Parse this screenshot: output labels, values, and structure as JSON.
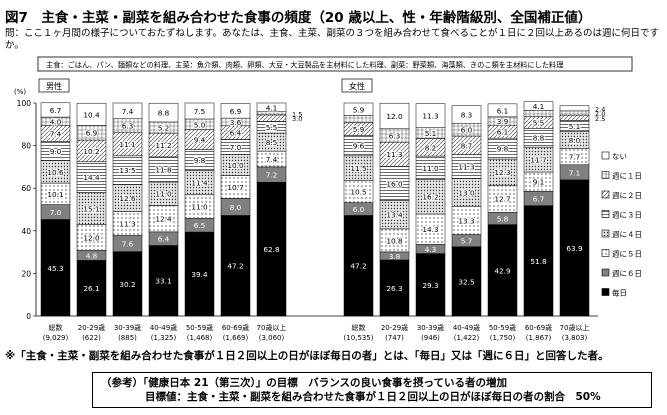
{
  "title": "図7　主食・主菜・副菜を組み合わせた食事の頻度（20 歳以上、性・年齢階級別、全国補正値）",
  "question": "問：ここ１ヶ月間の様子についておたずねします。あなたは、主食、主菜、副菜の３つを組み合わせて食べることが１日に２回以上あるのは週に何日ですか。",
  "definition_box": "主食：ごはん、パン、麺類などの料理、主菜：魚介類、肉類、卵類、大豆・大豆製品を主材料にした料理、副菜：野菜類、海藻類、きのこ類を主材料にした料理",
  "note": "※「主食・主菜・副菜を組み合わせた食事が１日２回以上の日がほぼ毎日の者」とは、「毎日」又は「週に６日」と回答した者。",
  "reference": {
    "line1": "（参考）「健康日本 21（第三次）」の目標　バランスの良い食事を摂っている者の増加",
    "line2": "目標値：主食・主菜・副菜を組み合わせた食事が１日２回以上の日がほぼ毎日の者の割合　50%"
  },
  "chart_data": {
    "type": "bar",
    "stacked": true,
    "ylabel": "(%)",
    "ylim": [
      0,
      100
    ],
    "yticks": [
      0,
      20,
      40,
      60,
      80,
      100
    ],
    "legend_position": "right",
    "groups": [
      {
        "name": "男性",
        "categories": [
          {
            "label": "総数",
            "n": "(9,029)",
            "values": [
              45.3,
              7.0,
              10.1,
              10.6,
              9.0,
              7.4,
              4.0,
              6.7
            ]
          },
          {
            "label": "20-29歳",
            "n": "(622)",
            "values": [
              26.1,
              4.8,
              12.0,
              15.1,
              14.4,
              10.2,
              6.9,
              10.4
            ]
          },
          {
            "label": "30-39歳",
            "n": "(885)",
            "values": [
              30.2,
              7.6,
              11.3,
              12.6,
              13.5,
              11.1,
              6.3,
              7.4
            ]
          },
          {
            "label": "40-49歳",
            "n": "(1,325)",
            "values": [
              33.1,
              6.4,
              12.4,
              11.0,
              11.8,
              11.2,
              5.2,
              8.8
            ]
          },
          {
            "label": "50-59歳",
            "n": "(1,468)",
            "values": [
              39.4,
              6.5,
              11.0,
              11.4,
              9.8,
              9.4,
              5.0,
              7.5
            ]
          },
          {
            "label": "60-69歳",
            "n": "(1,669)",
            "values": [
              47.2,
              8.0,
              10.7,
              10.0,
              7.0,
              6.4,
              3.6,
              6.9
            ]
          },
          {
            "label": "70歳以上",
            "n": "(3,060)",
            "values": [
              62.8,
              7.2,
              7.4,
              8.5,
              5.5,
              3.0,
              1.5,
              4.1
            ]
          }
        ]
      },
      {
        "name": "女性",
        "categories": [
          {
            "label": "総数",
            "n": "(10,535)",
            "values": [
              47.2,
              6.0,
              10.5,
              11.5,
              9.6,
              5.9,
              3.4,
              5.9
            ]
          },
          {
            "label": "20-29歳",
            "n": "(747)",
            "values": [
              26.3,
              3.8,
              10.8,
              13.4,
              16.0,
              11.3,
              6.3,
              12.0
            ]
          },
          {
            "label": "30-39歳",
            "n": "(946)",
            "values": [
              29.3,
              4.3,
              14.3,
              16.2,
              11.0,
              8.2,
              5.1,
              11.3
            ]
          },
          {
            "label": "40-49歳",
            "n": "(1,422)",
            "values": [
              32.5,
              5.7,
              13.3,
              13.0,
              11.3,
              8.7,
              6.0,
              8.3
            ]
          },
          {
            "label": "50-59歳",
            "n": "(1,750)",
            "values": [
              42.9,
              5.8,
              12.7,
              12.3,
              9.8,
              6.1,
              3.9,
              6.1
            ]
          },
          {
            "label": "60-69歳",
            "n": "(1,867)",
            "values": [
              51.8,
              6.7,
              9.1,
              11.7,
              8.8,
              5.5,
              2.9,
              4.1
            ]
          },
          {
            "label": "70歳以上",
            "n": "(3,803)",
            "values": [
              63.9,
              7.1,
              7.7,
              8.0,
              5.1,
              2.5,
              2.0,
              2.4
            ]
          }
        ]
      }
    ],
    "series": [
      {
        "name": "毎日",
        "color": "#000000"
      },
      {
        "name": "週に６日",
        "color": "#808080"
      },
      {
        "name": "週に５日",
        "pattern": "dots"
      },
      {
        "name": "週に４日",
        "pattern": "dense-dots"
      },
      {
        "name": "週に３日",
        "pattern": "hlines"
      },
      {
        "name": "週に２日",
        "pattern": "diag"
      },
      {
        "name": "週に１日",
        "pattern": "grid"
      },
      {
        "name": "ない",
        "color": "#ffffff"
      }
    ]
  }
}
